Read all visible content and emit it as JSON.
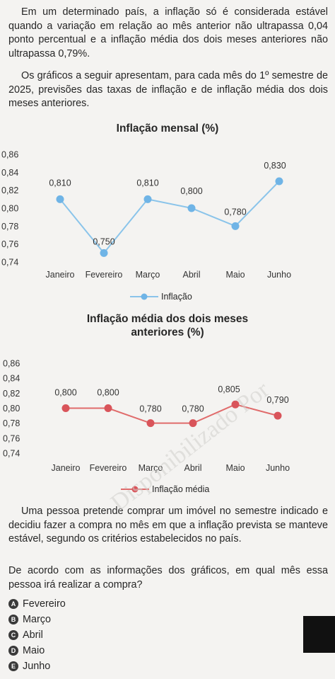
{
  "text": {
    "p1": "Em um determinado país, a inflação só é considerada estável quando a variação em relação ao mês anterior não ultrapassa 0,04 ponto percentual e a inflação média dos dois meses anteriores não ultrapassa 0,79%.",
    "p2": "Os gráficos a seguir apresentam, para cada mês do 1º semestre de 2025, previsões das taxas de inflação e de inflação média dos dois meses anteriores.",
    "p3": "Uma pessoa pretende comprar um imóvel no semestre indicado e decidiu fazer a compra no mês em que a inflação prevista se manteve estável, segundo os critérios estabelecidos no país.",
    "p4": "De acordo com as informações dos gráficos, em qual mês essa pessoa irá realizar a compra?"
  },
  "options": [
    {
      "letter": "A",
      "label": "Fevereiro"
    },
    {
      "letter": "B",
      "label": "Março"
    },
    {
      "letter": "C",
      "label": "Abril"
    },
    {
      "letter": "D",
      "label": "Maio"
    },
    {
      "letter": "E",
      "label": "Junho"
    }
  ],
  "watermark": "Disponibilizado Por",
  "chart_data": [
    {
      "type": "line",
      "title": "Inflação mensal (%)",
      "categories": [
        "Janeiro",
        "Fevereiro",
        "Março",
        "Abril",
        "Maio",
        "Junho"
      ],
      "series": [
        {
          "name": "Inflação",
          "values": [
            0.81,
            0.75,
            0.81,
            0.8,
            0.78,
            0.83
          ]
        }
      ],
      "data_labels": [
        "0,810",
        "0,750",
        "0,810",
        "0,800",
        "0,780",
        "0,830"
      ],
      "y_ticks": [
        "0,86",
        "0,84",
        "0,82",
        "0,80",
        "0,78",
        "0,76",
        "0,74"
      ],
      "ylim": [
        0.74,
        0.86
      ],
      "color": "#8ac4ea",
      "marker_color": "#6fb4e6",
      "legend_position": "bottom",
      "grid": false
    },
    {
      "type": "line",
      "title": "Inflação média dos dois meses anteriores (%)",
      "title_lines": [
        "Inflação média dos dois meses",
        "anteriores (%)"
      ],
      "categories": [
        "Janeiro",
        "Fevereiro",
        "Março",
        "Abril",
        "Maio",
        "Junho"
      ],
      "series": [
        {
          "name": "Inflação média",
          "values": [
            0.8,
            0.8,
            0.78,
            0.78,
            0.805,
            0.79
          ]
        }
      ],
      "data_labels": [
        "0,800",
        "0,800",
        "0,780",
        "0,780",
        "0,805",
        "0,790"
      ],
      "y_ticks": [
        "0,86",
        "0,84",
        "0,82",
        "0,80",
        "0,78",
        "0,76",
        "0,74"
      ],
      "ylim": [
        0.74,
        0.86
      ],
      "color": "#e06b6b",
      "marker_color": "#d9545a",
      "legend_position": "bottom",
      "grid": false
    }
  ]
}
